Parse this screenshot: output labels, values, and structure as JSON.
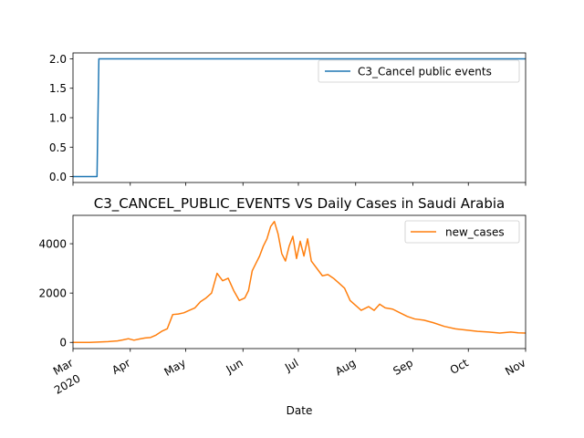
{
  "colors": {
    "c3": "#1f77b4",
    "cases": "#ff7f0e"
  },
  "chart_data": [
    {
      "type": "line",
      "title": "",
      "xlabel": "",
      "ylabel": "",
      "ylim": [
        -0.1,
        2.1
      ],
      "yticks": [
        "0.0",
        "0.5",
        "1.0",
        "1.5",
        "2.0"
      ],
      "legend_position": "top-right",
      "series": [
        {
          "name": "C3_Cancel public events",
          "points": [
            [
              "2020-03-01",
              0
            ],
            [
              "2020-03-14",
              0
            ],
            [
              "2020-03-15",
              2
            ],
            [
              "2020-11-01",
              2
            ]
          ]
        }
      ]
    },
    {
      "type": "line",
      "title": "C3_CANCEL_PUBLIC_EVENTS VS Daily Cases in Saudi Arabia",
      "xlabel": "Date",
      "ylabel": "",
      "ylim": [
        -250,
        5150
      ],
      "yticks": [
        "0",
        "2000",
        "4000"
      ],
      "xticks": [
        {
          "date": "2020-03-01",
          "label": "Mar",
          "sublabel": "2020"
        },
        {
          "date": "2020-04-01",
          "label": "Apr"
        },
        {
          "date": "2020-05-01",
          "label": "May"
        },
        {
          "date": "2020-06-01",
          "label": "Jun"
        },
        {
          "date": "2020-07-01",
          "label": "Jul"
        },
        {
          "date": "2020-08-01",
          "label": "Aug"
        },
        {
          "date": "2020-09-01",
          "label": "Sep"
        },
        {
          "date": "2020-10-01",
          "label": "Oct"
        },
        {
          "date": "2020-11-01",
          "label": "Nov"
        }
      ],
      "legend_position": "top-right",
      "series": [
        {
          "name": "new_cases",
          "points": [
            [
              "2020-03-01",
              0
            ],
            [
              "2020-03-10",
              0
            ],
            [
              "2020-03-20",
              30
            ],
            [
              "2020-03-25",
              60
            ],
            [
              "2020-03-28",
              100
            ],
            [
              "2020-03-31",
              150
            ],
            [
              "2020-04-03",
              90
            ],
            [
              "2020-04-06",
              140
            ],
            [
              "2020-04-09",
              180
            ],
            [
              "2020-04-12",
              200
            ],
            [
              "2020-04-15",
              300
            ],
            [
              "2020-04-18",
              450
            ],
            [
              "2020-04-21",
              550
            ],
            [
              "2020-04-24",
              1130
            ],
            [
              "2020-04-27",
              1150
            ],
            [
              "2020-04-30",
              1200
            ],
            [
              "2020-05-03",
              1300
            ],
            [
              "2020-05-06",
              1400
            ],
            [
              "2020-05-09",
              1650
            ],
            [
              "2020-05-12",
              1800
            ],
            [
              "2020-05-15",
              2000
            ],
            [
              "2020-05-18",
              2800
            ],
            [
              "2020-05-21",
              2500
            ],
            [
              "2020-05-24",
              2600
            ],
            [
              "2020-05-27",
              2100
            ],
            [
              "2020-05-30",
              1700
            ],
            [
              "2020-06-02",
              1800
            ],
            [
              "2020-06-04",
              2100
            ],
            [
              "2020-06-06",
              2900
            ],
            [
              "2020-06-08",
              3200
            ],
            [
              "2020-06-10",
              3500
            ],
            [
              "2020-06-12",
              3900
            ],
            [
              "2020-06-14",
              4200
            ],
            [
              "2020-06-16",
              4700
            ],
            [
              "2020-06-18",
              4900
            ],
            [
              "2020-06-20",
              4400
            ],
            [
              "2020-06-22",
              3600
            ],
            [
              "2020-06-24",
              3300
            ],
            [
              "2020-06-26",
              3900
            ],
            [
              "2020-06-28",
              4300
            ],
            [
              "2020-06-30",
              3400
            ],
            [
              "2020-07-02",
              4100
            ],
            [
              "2020-07-04",
              3500
            ],
            [
              "2020-07-06",
              4200
            ],
            [
              "2020-07-08",
              3300
            ],
            [
              "2020-07-11",
              3000
            ],
            [
              "2020-07-14",
              2700
            ],
            [
              "2020-07-17",
              2750
            ],
            [
              "2020-07-20",
              2600
            ],
            [
              "2020-07-23",
              2400
            ],
            [
              "2020-07-26",
              2200
            ],
            [
              "2020-07-29",
              1700
            ],
            [
              "2020-08-01",
              1500
            ],
            [
              "2020-08-04",
              1300
            ],
            [
              "2020-08-08",
              1450
            ],
            [
              "2020-08-11",
              1300
            ],
            [
              "2020-08-14",
              1550
            ],
            [
              "2020-08-17",
              1400
            ],
            [
              "2020-08-21",
              1350
            ],
            [
              "2020-08-25",
              1200
            ],
            [
              "2020-08-29",
              1050
            ],
            [
              "2020-09-02",
              950
            ],
            [
              "2020-09-07",
              900
            ],
            [
              "2020-09-12",
              800
            ],
            [
              "2020-09-18",
              650
            ],
            [
              "2020-09-24",
              550
            ],
            [
              "2020-09-30",
              500
            ],
            [
              "2020-10-06",
              450
            ],
            [
              "2020-10-12",
              420
            ],
            [
              "2020-10-18",
              380
            ],
            [
              "2020-10-24",
              420
            ],
            [
              "2020-10-28",
              390
            ],
            [
              "2020-11-01",
              380
            ]
          ]
        }
      ]
    }
  ]
}
